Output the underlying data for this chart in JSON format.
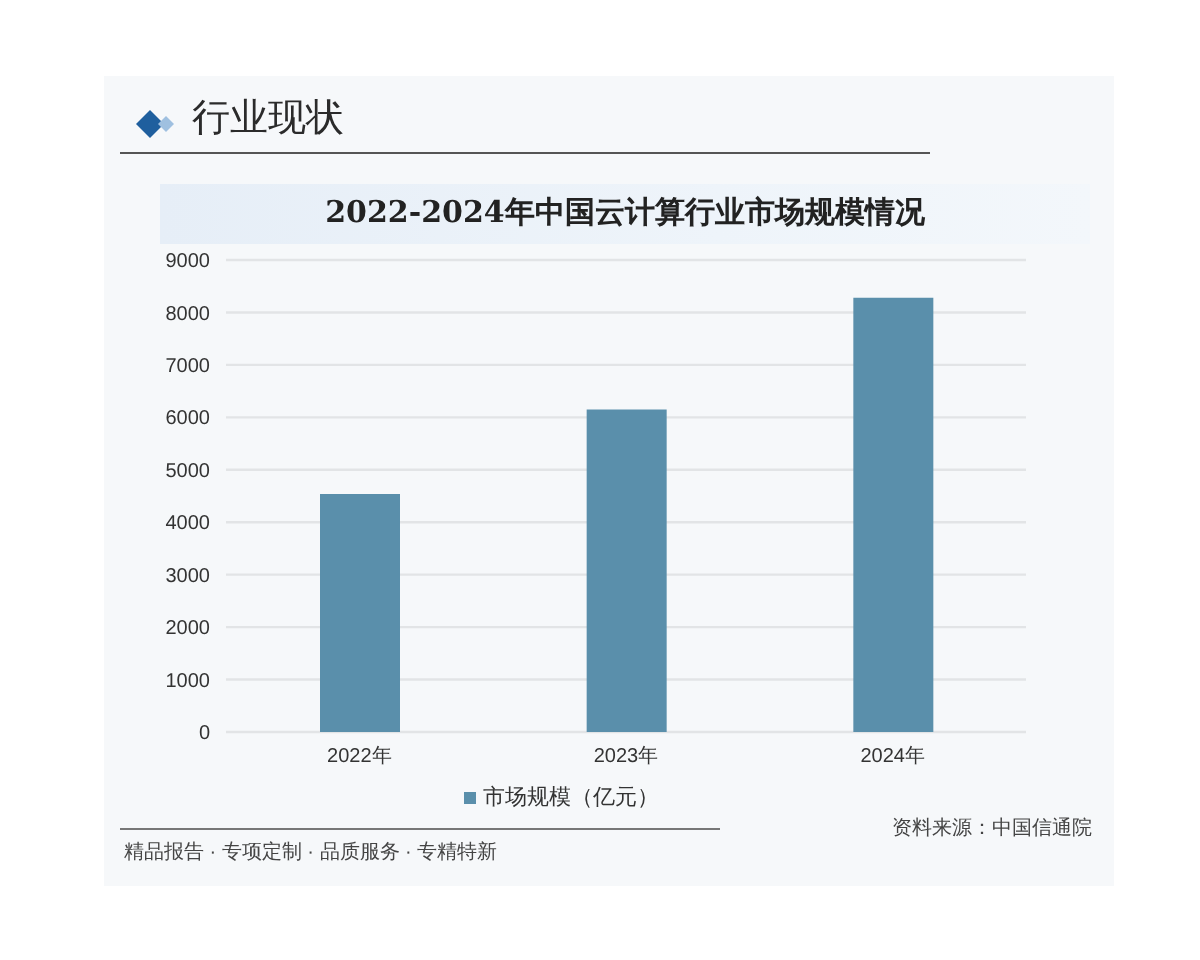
{
  "chart_data": {
    "type": "bar",
    "title": "2022-2024年中国云计算行业市场规模情况",
    "categories": [
      "2022年",
      "2023年",
      "2024年"
    ],
    "series": [
      {
        "name": "市场规模（亿元）",
        "color": "#5a8fab",
        "values": [
          4540,
          6150,
          8280
        ]
      }
    ],
    "ylim": [
      0,
      9000
    ],
    "yticks": [
      0,
      1000,
      2000,
      3000,
      4000,
      5000,
      6000,
      7000,
      8000,
      9000
    ],
    "grid": "y",
    "legend": "bottom",
    "annotations": [
      "行业现状",
      "资料来源：中国信通院",
      "精品报告 · 专项定制 · 品质服务 · 专精特新"
    ]
  }
}
